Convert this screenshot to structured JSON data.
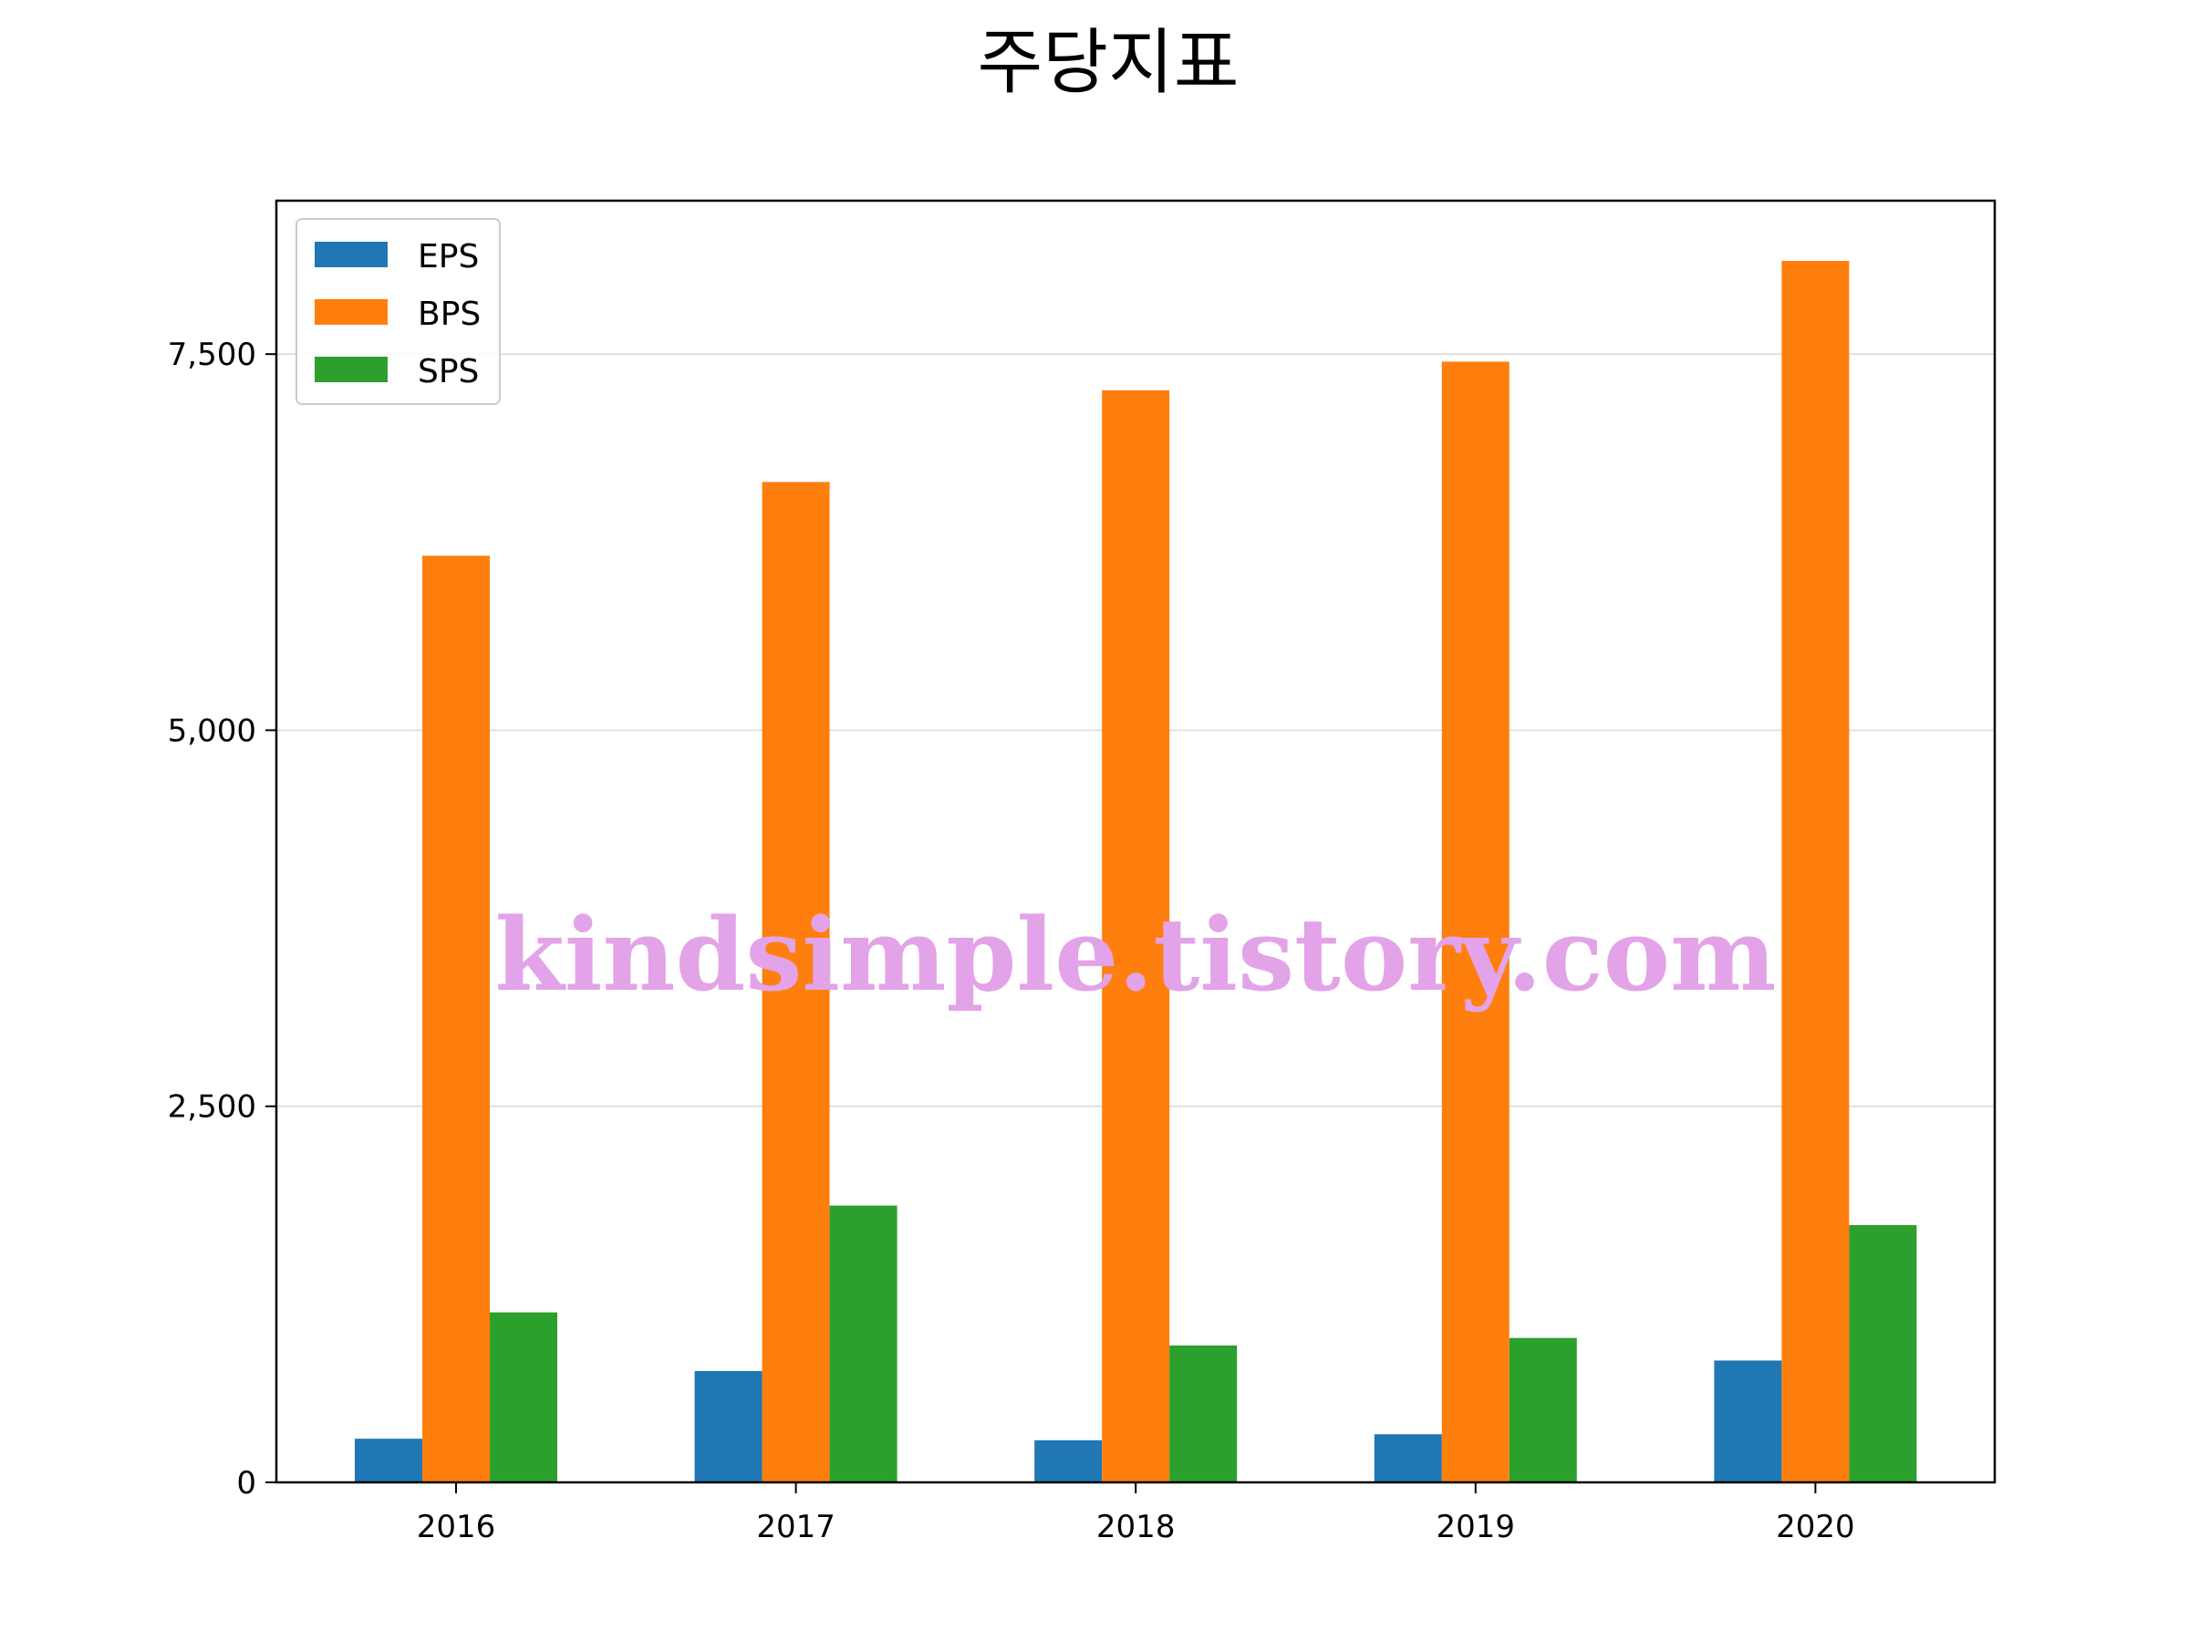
{
  "chart_data": {
    "type": "bar",
    "title": "주당지표",
    "xlabel": "",
    "ylabel": "",
    "categories": [
      "2016",
      "2017",
      "2018",
      "2019",
      "2020"
    ],
    "series": [
      {
        "name": "EPS",
        "color": "#1f77b4",
        "values": [
          290,
          740,
          280,
          320,
          810
        ]
      },
      {
        "name": "BPS",
        "color": "#ff7f0e",
        "values": [
          6160,
          6650,
          7260,
          7450,
          8120
        ]
      },
      {
        "name": "SPS",
        "color": "#2ca02c",
        "values": [
          1130,
          1840,
          910,
          960,
          1710
        ]
      }
    ],
    "ylim": [
      0,
      8520
    ],
    "yticks": [
      0,
      2500,
      5000,
      7500
    ],
    "ytick_labels": [
      "0",
      "2,500",
      "5,000",
      "7,500"
    ],
    "grid": "horizontal",
    "legend_position": "top-left",
    "watermark": "kindsimple.tistory.com"
  }
}
